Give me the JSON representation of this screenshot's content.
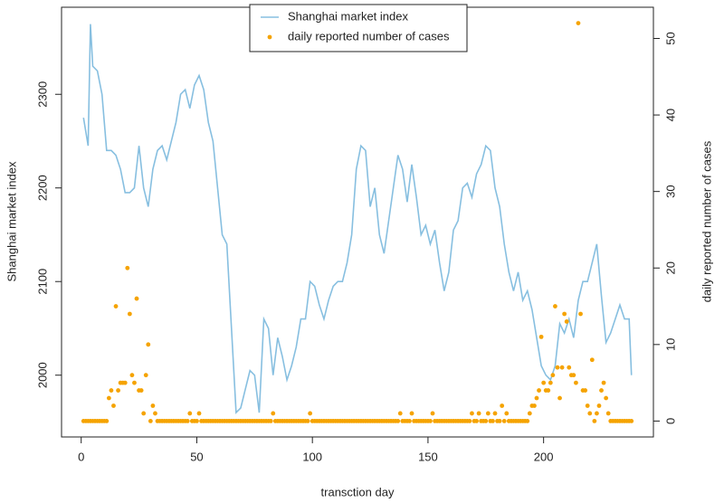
{
  "chart_data": {
    "type": "line",
    "xlabel": "transction day",
    "ylabel": "Shanghai market index",
    "y2label": "daily reported number of cases",
    "xlim": [
      -8.5,
      247.5
    ],
    "xticks": [
      0,
      50,
      100,
      150,
      200
    ],
    "ylim": [
      1934,
      2393
    ],
    "yticks": [
      2000,
      2100,
      2200,
      2300
    ],
    "y2lim": [
      -2.08,
      54.08
    ],
    "y2ticks": [
      0,
      10,
      20,
      30,
      40,
      50
    ],
    "legend": "top",
    "series": [
      {
        "name": "Shanghai market index",
        "type": "line",
        "color": "#87bfe0",
        "x": [
          1,
          3,
          4,
          5,
          7,
          9,
          11,
          13,
          15,
          17,
          19,
          21,
          23,
          25,
          27,
          29,
          31,
          33,
          35,
          37,
          39,
          41,
          43,
          45,
          47,
          49,
          51,
          53,
          55,
          57,
          59,
          61,
          63,
          65,
          67,
          69,
          71,
          73,
          75,
          77,
          79,
          81,
          83,
          85,
          87,
          89,
          91,
          93,
          95,
          97,
          99,
          101,
          103,
          105,
          107,
          109,
          111,
          113,
          115,
          117,
          119,
          121,
          123,
          125,
          127,
          129,
          131,
          133,
          135,
          137,
          139,
          141,
          143,
          145,
          147,
          149,
          151,
          153,
          155,
          157,
          159,
          161,
          163,
          165,
          167,
          169,
          171,
          173,
          175,
          177,
          179,
          181,
          183,
          185,
          187,
          189,
          191,
          193,
          195,
          197,
          199,
          201,
          203,
          205,
          207,
          209,
          211,
          213,
          215,
          217,
          219,
          221,
          223,
          225,
          227,
          229,
          231,
          233,
          235,
          237,
          238
        ],
        "values": [
          2275,
          2245,
          2375,
          2330,
          2325,
          2300,
          2240,
          2240,
          2235,
          2220,
          2195,
          2195,
          2200,
          2245,
          2200,
          2180,
          2220,
          2240,
          2245,
          2230,
          2250,
          2270,
          2300,
          2305,
          2285,
          2310,
          2320,
          2305,
          2270,
          2250,
          2200,
          2150,
          2140,
          2050,
          1960,
          1965,
          1985,
          2005,
          2000,
          1960,
          2060,
          2050,
          2000,
          2040,
          2020,
          1995,
          2010,
          2030,
          2060,
          2060,
          2100,
          2095,
          2075,
          2060,
          2080,
          2095,
          2100,
          2100,
          2120,
          2150,
          2220,
          2245,
          2240,
          2180,
          2200,
          2150,
          2130,
          2165,
          2200,
          2235,
          2220,
          2185,
          2225,
          2190,
          2150,
          2160,
          2140,
          2155,
          2120,
          2090,
          2110,
          2155,
          2165,
          2200,
          2205,
          2190,
          2215,
          2225,
          2245,
          2240,
          2200,
          2180,
          2140,
          2110,
          2090,
          2110,
          2080,
          2090,
          2070,
          2040,
          2010,
          2000,
          1995,
          2010,
          2055,
          2045,
          2060,
          2040,
          2080,
          2100,
          2100,
          2120,
          2140,
          2085,
          2035,
          2045,
          2060,
          2075,
          2060,
          2060,
          2000
        ]
      },
      {
        "name": "daily reported number of cases",
        "type": "scatter",
        "axis": "y2",
        "color": "#f5a300",
        "x": [
          1,
          2,
          3,
          4,
          5,
          6,
          7,
          8,
          9,
          10,
          11,
          12,
          13,
          14,
          15,
          16,
          17,
          18,
          19,
          20,
          21,
          22,
          23,
          24,
          25,
          26,
          27,
          28,
          29,
          30,
          31,
          32,
          33,
          34,
          35,
          36,
          37,
          38,
          39,
          40,
          41,
          42,
          43,
          44,
          45,
          46,
          47,
          48,
          49,
          50,
          51,
          52,
          53,
          54,
          55,
          56,
          57,
          58,
          59,
          60,
          61,
          62,
          63,
          64,
          65,
          66,
          67,
          68,
          69,
          70,
          71,
          72,
          73,
          74,
          75,
          76,
          77,
          78,
          79,
          80,
          81,
          82,
          83,
          84,
          85,
          86,
          87,
          88,
          89,
          90,
          91,
          92,
          93,
          94,
          95,
          96,
          97,
          98,
          99,
          100,
          101,
          102,
          103,
          104,
          105,
          106,
          107,
          108,
          109,
          110,
          111,
          112,
          113,
          114,
          115,
          116,
          117,
          118,
          119,
          120,
          121,
          122,
          123,
          124,
          125,
          126,
          127,
          128,
          129,
          130,
          131,
          132,
          133,
          134,
          135,
          136,
          137,
          138,
          139,
          140,
          141,
          142,
          143,
          144,
          145,
          146,
          147,
          148,
          149,
          150,
          151,
          152,
          153,
          154,
          155,
          156,
          157,
          158,
          159,
          160,
          161,
          162,
          163,
          164,
          165,
          166,
          167,
          168,
          169,
          170,
          171,
          172,
          173,
          174,
          175,
          176,
          177,
          178,
          179,
          180,
          181,
          182,
          183,
          184,
          185,
          186,
          187,
          188,
          189,
          190,
          191,
          192,
          193,
          194,
          195,
          196,
          197,
          198,
          199,
          200,
          201,
          202,
          203,
          204,
          205,
          206,
          207,
          208,
          209,
          210,
          211,
          212,
          213,
          214,
          215,
          216,
          217,
          218,
          219,
          220,
          221,
          222,
          223,
          224,
          225,
          226,
          227,
          228,
          229,
          230,
          231,
          232,
          233,
          234,
          235,
          236,
          237,
          238
        ],
        "values": [
          0,
          0,
          0,
          0,
          0,
          0,
          0,
          0,
          0,
          0,
          0,
          3,
          4,
          2,
          15,
          4,
          5,
          5,
          5,
          20,
          14,
          6,
          5,
          16,
          4,
          4,
          1,
          6,
          10,
          0,
          2,
          1,
          0,
          0,
          0,
          0,
          0,
          0,
          0,
          0,
          0,
          0,
          0,
          0,
          0,
          0,
          1,
          0,
          0,
          0,
          1,
          0,
          0,
          0,
          0,
          0,
          0,
          0,
          0,
          0,
          0,
          0,
          0,
          0,
          0,
          0,
          0,
          0,
          0,
          0,
          0,
          0,
          0,
          0,
          0,
          0,
          0,
          0,
          0,
          0,
          0,
          0,
          1,
          0,
          0,
          0,
          0,
          0,
          0,
          0,
          0,
          0,
          0,
          0,
          0,
          0,
          0,
          0,
          1,
          0,
          0,
          0,
          0,
          0,
          0,
          0,
          0,
          0,
          0,
          0,
          0,
          0,
          0,
          0,
          0,
          0,
          0,
          0,
          0,
          0,
          0,
          0,
          0,
          0,
          0,
          0,
          0,
          0,
          0,
          0,
          0,
          0,
          0,
          0,
          0,
          0,
          0,
          1,
          0,
          0,
          0,
          0,
          1,
          0,
          0,
          0,
          0,
          0,
          0,
          0,
          0,
          1,
          0,
          0,
          0,
          0,
          0,
          0,
          0,
          0,
          0,
          0,
          0,
          0,
          0,
          0,
          0,
          0,
          1,
          0,
          0,
          1,
          0,
          0,
          0,
          1,
          0,
          0,
          1,
          0,
          0,
          2,
          0,
          1,
          0,
          0,
          0,
          0,
          0,
          0,
          0,
          0,
          0,
          1,
          2,
          2,
          3,
          4,
          11,
          5,
          4,
          4,
          5,
          6,
          15,
          7,
          3,
          7,
          14,
          13,
          7,
          6,
          6,
          5,
          52,
          14,
          4,
          4,
          2,
          1,
          8,
          0,
          1,
          2,
          4,
          5,
          3,
          1,
          0,
          0,
          0,
          0,
          0,
          0,
          0,
          0,
          0,
          0
        ]
      }
    ]
  }
}
